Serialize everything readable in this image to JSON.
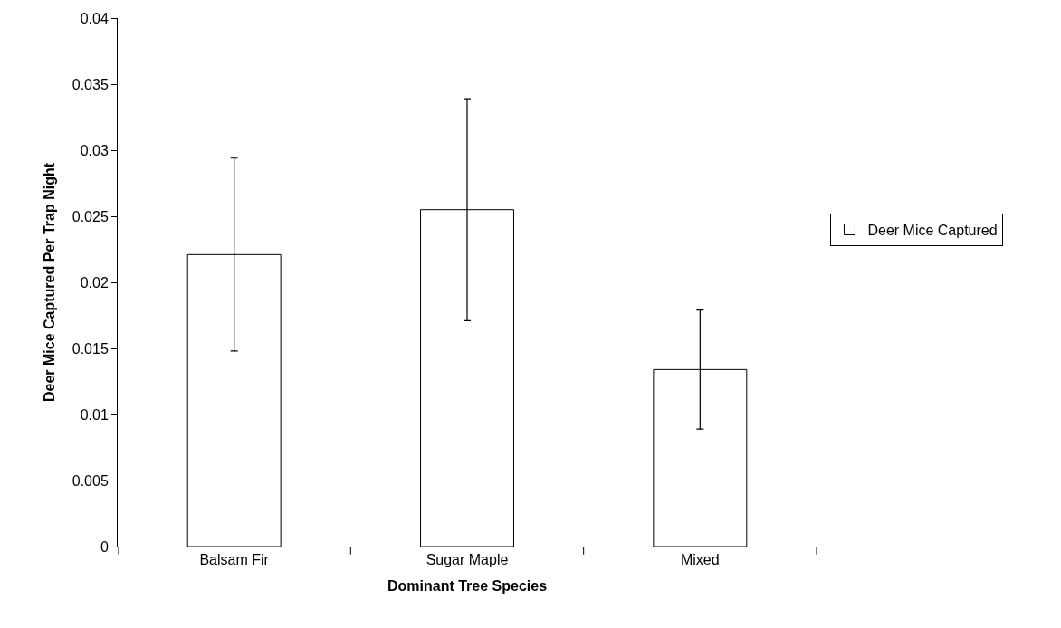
{
  "chart_data": {
    "type": "bar",
    "xlabel": "Dominant Tree Species",
    "ylabel": "Deer Mice Captured Per Trap Night",
    "categories": [
      "Balsam Fir",
      "Sugar Maple",
      "Mixed"
    ],
    "series": [
      {
        "name": "Deer Mice Captured",
        "color": "#ffffff",
        "values": [
          0.0221,
          0.0255,
          0.0134
        ],
        "errors": [
          0.0073,
          0.0084,
          0.0045
        ]
      }
    ],
    "ylim": [
      0,
      0.04
    ],
    "yticks": [
      0,
      0.005,
      0.01,
      0.015,
      0.02,
      0.025,
      0.03,
      0.035,
      0.04
    ],
    "legend": "right"
  }
}
